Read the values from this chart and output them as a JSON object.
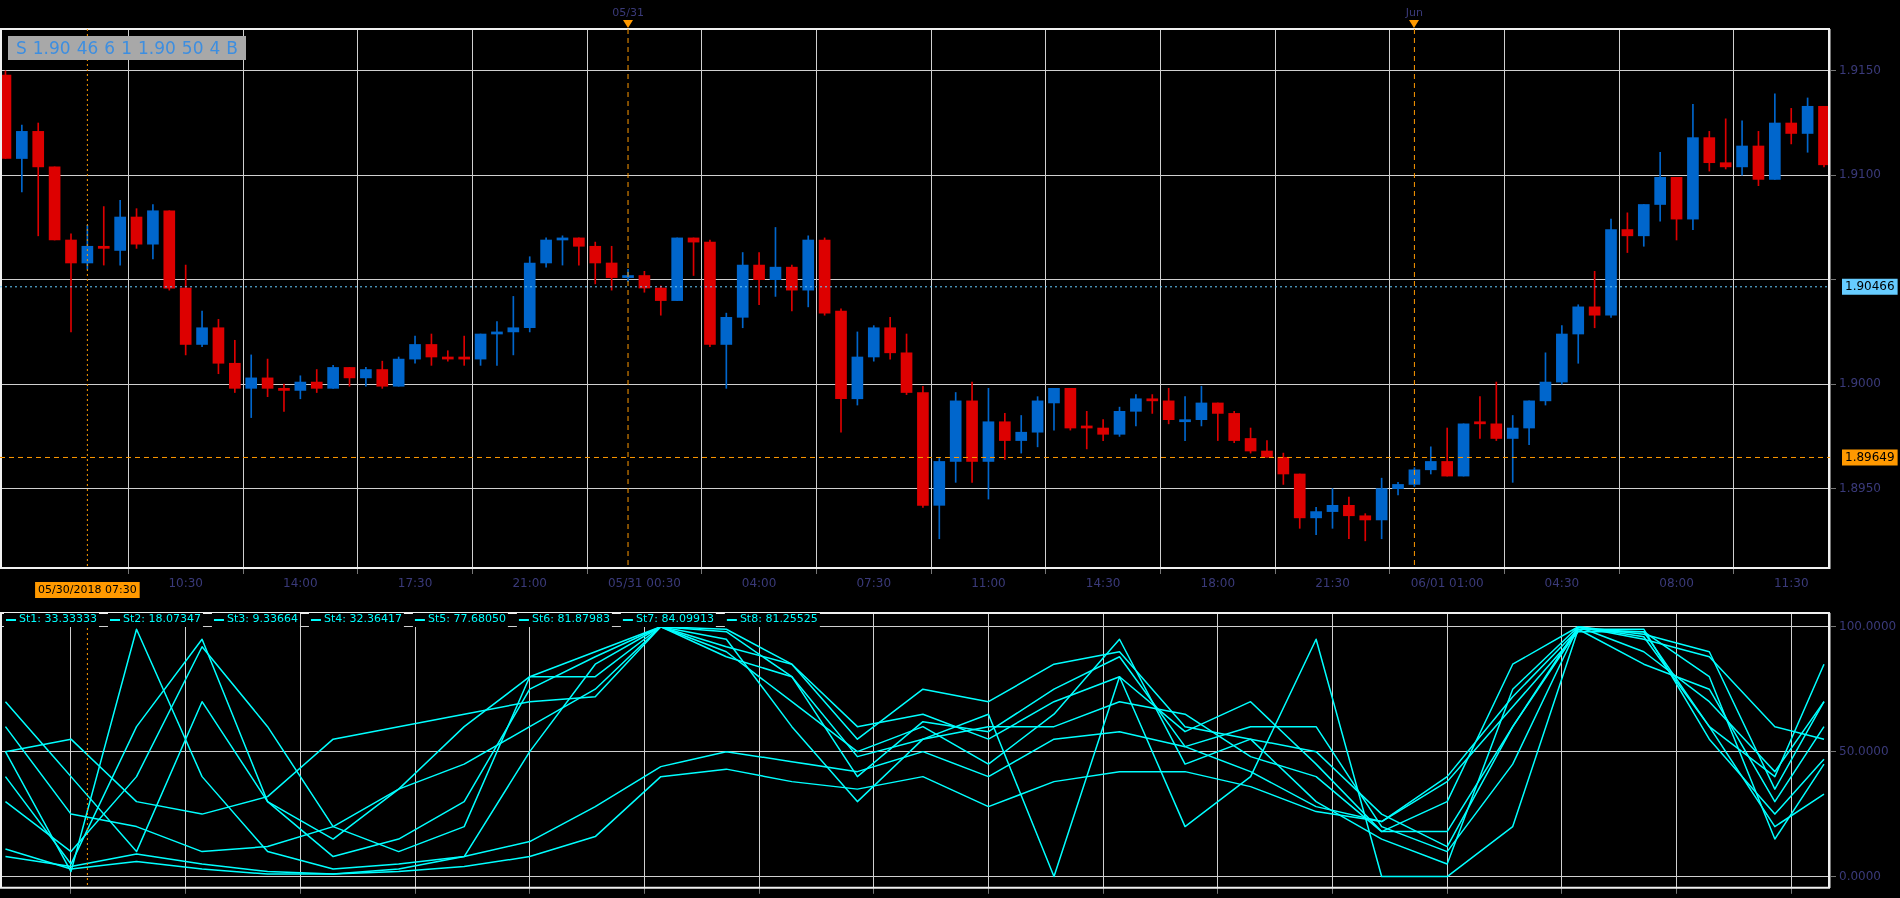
{
  "chart_data": [
    {
      "type": "candlestick",
      "annotations": [
        "S",
        "1.90",
        "46",
        "6",
        "1",
        "1.90",
        "50",
        "4",
        "B"
      ],
      "x": [
        "2018-05-30T05:00",
        "2018-05-30T05:30",
        "2018-05-30T06:00",
        "2018-05-30T06:30",
        "2018-05-30T07:00",
        "2018-05-30T07:30",
        "2018-05-30T08:00",
        "2018-05-30T08:30",
        "2018-05-30T09:00",
        "2018-05-30T09:30",
        "2018-05-30T10:00",
        "2018-05-30T10:30",
        "2018-05-30T11:00",
        "2018-05-30T11:30",
        "2018-05-30T12:00",
        "2018-05-30T12:30",
        "2018-05-30T13:00",
        "2018-05-30T13:30",
        "2018-05-30T14:00",
        "2018-05-30T14:30",
        "2018-05-30T15:00",
        "2018-05-30T15:30",
        "2018-05-30T16:00",
        "2018-05-30T16:30",
        "2018-05-30T17:00",
        "2018-05-30T17:30",
        "2018-05-30T18:00",
        "2018-05-30T18:30",
        "2018-05-30T19:00",
        "2018-05-30T19:30",
        "2018-05-30T20:00",
        "2018-05-30T20:30",
        "2018-05-30T21:00",
        "2018-05-30T21:30",
        "2018-05-30T22:00",
        "2018-05-30T22:30",
        "2018-05-30T23:00",
        "2018-05-30T23:30",
        "2018-05-31T00:00",
        "2018-05-31T00:30",
        "2018-05-31T01:00",
        "2018-05-31T01:30",
        "2018-05-31T02:00",
        "2018-05-31T02:30",
        "2018-05-31T03:00",
        "2018-05-31T03:30",
        "2018-05-31T04:00",
        "2018-05-31T04:30",
        "2018-05-31T05:00",
        "2018-05-31T05:30",
        "2018-05-31T06:00",
        "2018-05-31T06:30",
        "2018-05-31T07:00",
        "2018-05-31T07:30",
        "2018-05-31T08:00",
        "2018-05-31T08:30",
        "2018-05-31T09:00",
        "2018-05-31T09:30",
        "2018-05-31T10:00",
        "2018-05-31T10:30",
        "2018-05-31T11:00",
        "2018-05-31T11:30",
        "2018-05-31T12:00",
        "2018-05-31T12:30",
        "2018-05-31T13:00",
        "2018-05-31T13:30",
        "2018-05-31T14:00",
        "2018-05-31T14:30",
        "2018-05-31T15:00",
        "2018-05-31T15:30",
        "2018-05-31T16:00",
        "2018-05-31T16:30",
        "2018-05-31T17:00",
        "2018-05-31T17:30",
        "2018-05-31T18:00",
        "2018-05-31T18:30",
        "2018-05-31T19:00",
        "2018-05-31T19:30",
        "2018-05-31T20:00",
        "2018-05-31T20:30",
        "2018-05-31T21:00",
        "2018-05-31T21:30",
        "2018-05-31T22:00",
        "2018-05-31T22:30",
        "2018-05-31T23:00",
        "2018-05-31T23:30",
        "2018-06-01T00:00",
        "2018-06-01T00:30",
        "2018-06-01T01:00",
        "2018-06-01T01:30",
        "2018-06-01T02:00",
        "2018-06-01T02:30",
        "2018-06-01T03:00",
        "2018-06-01T03:30",
        "2018-06-01T04:00",
        "2018-06-01T04:30",
        "2018-06-01T05:00",
        "2018-06-01T05:30",
        "2018-06-01T06:00",
        "2018-06-01T06:30",
        "2018-06-01T07:00",
        "2018-06-01T07:30",
        "2018-06-01T08:00",
        "2018-06-01T08:30",
        "2018-06-01T09:00",
        "2018-06-01T09:30",
        "2018-06-01T10:00",
        "2018-06-01T10:30",
        "2018-06-01T11:00",
        "2018-06-01T11:30",
        "2018-06-01T12:00",
        "2018-06-01T12:30"
      ],
      "ohlc": [
        [
          1.9148,
          1.915,
          1.9108,
          1.9108
        ],
        [
          1.9108,
          1.9124,
          1.9092,
          1.9121
        ],
        [
          1.9121,
          1.9125,
          1.9071,
          1.9104
        ],
        [
          1.9104,
          1.9104,
          1.9069,
          1.9069
        ],
        [
          1.9069,
          1.9072,
          1.9025,
          1.9058
        ],
        [
          1.9058,
          1.9076,
          1.9055,
          1.9066
        ],
        [
          1.9066,
          1.9085,
          1.9057,
          1.9065
        ],
        [
          1.9064,
          1.9088,
          1.9057,
          1.908
        ],
        [
          1.908,
          1.9084,
          1.9065,
          1.9067
        ],
        [
          1.9067,
          1.9086,
          1.906,
          1.9083
        ],
        [
          1.9083,
          1.9083,
          1.9045,
          1.9046
        ],
        [
          1.9046,
          1.9057,
          1.9014,
          1.9019
        ],
        [
          1.9019,
          1.9035,
          1.9018,
          1.9027
        ],
        [
          1.9027,
          1.9031,
          1.9005,
          1.901
        ],
        [
          1.901,
          1.9021,
          1.8996,
          1.8998
        ],
        [
          1.8998,
          1.9014,
          1.8984,
          1.9003
        ],
        [
          1.9003,
          1.9012,
          1.8994,
          1.8998
        ],
        [
          1.8998,
          1.9,
          1.8987,
          1.8997
        ],
        [
          1.8997,
          1.9004,
          1.8993,
          1.9001
        ],
        [
          1.9001,
          1.9007,
          1.8996,
          1.8998
        ],
        [
          1.8998,
          1.9009,
          1.8998,
          1.9008
        ],
        [
          1.9008,
          1.9008,
          1.8999,
          1.9003
        ],
        [
          1.9003,
          1.9008,
          1.8999,
          1.9007
        ],
        [
          1.9007,
          1.9011,
          1.8998,
          1.8999
        ],
        [
          1.8999,
          1.9013,
          1.8999,
          1.9012
        ],
        [
          1.9012,
          1.9023,
          1.901,
          1.9019
        ],
        [
          1.9019,
          1.9024,
          1.9009,
          1.9013
        ],
        [
          1.9013,
          1.9016,
          1.9011,
          1.9012
        ],
        [
          1.9013,
          1.9023,
          1.9009,
          1.9012
        ],
        [
          1.9012,
          1.9024,
          1.9009,
          1.9024
        ],
        [
          1.9024,
          1.903,
          1.9009,
          1.9025
        ],
        [
          1.9025,
          1.9042,
          1.9014,
          1.9027
        ],
        [
          1.9027,
          1.9061,
          1.9025,
          1.9058
        ],
        [
          1.9058,
          1.907,
          1.9056,
          1.9069
        ],
        [
          1.9069,
          1.9071,
          1.9057,
          1.907
        ],
        [
          1.907,
          1.907,
          1.9057,
          1.9066
        ],
        [
          1.9066,
          1.9068,
          1.9048,
          1.9058
        ],
        [
          1.9058,
          1.9066,
          1.9045,
          1.9051
        ],
        [
          1.9051,
          1.9055,
          1.9049,
          1.9052
        ],
        [
          1.9052,
          1.9054,
          1.9044,
          1.9046
        ],
        [
          1.9046,
          1.9047,
          1.9033,
          1.904
        ],
        [
          1.904,
          1.907,
          1.904,
          1.907
        ],
        [
          1.907,
          1.907,
          1.9052,
          1.9068
        ],
        [
          1.9068,
          1.9069,
          1.9018,
          1.9019
        ],
        [
          1.9019,
          1.9034,
          1.8998,
          1.9032
        ],
        [
          1.9032,
          1.9063,
          1.9027,
          1.9057
        ],
        [
          1.9057,
          1.9063,
          1.9038,
          1.905
        ],
        [
          1.905,
          1.9075,
          1.9042,
          1.9056
        ],
        [
          1.9056,
          1.9057,
          1.9035,
          1.9045
        ],
        [
          1.9045,
          1.9071,
          1.9037,
          1.9069
        ],
        [
          1.9069,
          1.907,
          1.9033,
          1.9034
        ],
        [
          1.9035,
          1.9036,
          1.8977,
          1.8993
        ],
        [
          1.8993,
          1.9025,
          1.899,
          1.9013
        ],
        [
          1.9013,
          1.9028,
          1.9011,
          1.9027
        ],
        [
          1.9027,
          1.9032,
          1.9012,
          1.9015
        ],
        [
          1.9015,
          1.9024,
          1.8995,
          1.8996
        ],
        [
          1.8996,
          1.8999,
          1.8941,
          1.8942
        ],
        [
          1.8942,
          1.8965,
          1.8926,
          1.8963
        ],
        [
          1.8963,
          1.8996,
          1.8953,
          1.8992
        ],
        [
          1.8992,
          1.9001,
          1.8953,
          1.8963
        ],
        [
          1.8963,
          1.8998,
          1.8945,
          1.8982
        ],
        [
          1.8982,
          1.8986,
          1.8964,
          1.8973
        ],
        [
          1.8973,
          1.8985,
          1.8967,
          1.8977
        ],
        [
          1.8977,
          1.8994,
          1.897,
          1.8992
        ],
        [
          1.8991,
          1.8998,
          1.8978,
          1.8998
        ],
        [
          1.8998,
          1.8998,
          1.8978,
          1.8979
        ],
        [
          1.898,
          1.8987,
          1.8969,
          1.8979
        ],
        [
          1.8979,
          1.8983,
          1.8973,
          1.8976
        ],
        [
          1.8976,
          1.8989,
          1.8975,
          1.8987
        ],
        [
          1.8987,
          1.8995,
          1.898,
          1.8993
        ],
        [
          1.8993,
          1.8995,
          1.8986,
          1.8992
        ],
        [
          1.8992,
          1.8998,
          1.8981,
          1.8983
        ],
        [
          1.8982,
          1.8994,
          1.8973,
          1.8983
        ],
        [
          1.8983,
          1.8999,
          1.898,
          1.8991
        ],
        [
          1.8991,
          1.8991,
          1.8973,
          1.8986
        ],
        [
          1.8986,
          1.8987,
          1.8972,
          1.8973
        ],
        [
          1.8974,
          1.8979,
          1.8967,
          1.8968
        ],
        [
          1.8968,
          1.8973,
          1.8965,
          1.8965
        ],
        [
          1.8965,
          1.8967,
          1.8952,
          1.8957
        ],
        [
          1.8957,
          1.8957,
          1.8931,
          1.8936
        ],
        [
          1.8936,
          1.8941,
          1.8928,
          1.8939
        ],
        [
          1.8939,
          1.895,
          1.8931,
          1.8942
        ],
        [
          1.8942,
          1.8946,
          1.8926,
          1.8937
        ],
        [
          1.8937,
          1.8938,
          1.8925,
          1.8935
        ],
        [
          1.8935,
          1.8955,
          1.8926,
          1.895
        ],
        [
          1.895,
          1.8953,
          1.8947,
          1.8952
        ],
        [
          1.8952,
          1.896,
          1.8951,
          1.8959
        ],
        [
          1.8959,
          1.897,
          1.8957,
          1.8963
        ],
        [
          1.8963,
          1.8979,
          1.8956,
          1.8956
        ],
        [
          1.8956,
          1.8981,
          1.8956,
          1.8981
        ],
        [
          1.8982,
          1.8994,
          1.8974,
          1.8981
        ],
        [
          1.8981,
          1.9001,
          1.8973,
          1.8974
        ],
        [
          1.8974,
          1.8985,
          1.8953,
          1.8979
        ],
        [
          1.8979,
          1.8992,
          1.8971,
          1.8992
        ],
        [
          1.8992,
          1.9015,
          1.899,
          1.9001
        ],
        [
          1.9001,
          1.9028,
          1.9,
          1.9024
        ],
        [
          1.9024,
          1.9038,
          1.901,
          1.9037
        ],
        [
          1.9037,
          1.9054,
          1.9027,
          1.9033
        ],
        [
          1.9033,
          1.9079,
          1.9032,
          1.9074
        ],
        [
          1.9074,
          1.9082,
          1.9063,
          1.9071
        ],
        [
          1.9071,
          1.9086,
          1.9066,
          1.9086
        ],
        [
          1.9086,
          1.9111,
          1.9078,
          1.9099
        ],
        [
          1.9099,
          1.9099,
          1.9069,
          1.9079
        ],
        [
          1.9079,
          1.9134,
          1.9074,
          1.9118
        ],
        [
          1.9118,
          1.9121,
          1.9102,
          1.9106
        ],
        [
          1.9106,
          1.9127,
          1.9103,
          1.9104
        ],
        [
          1.9104,
          1.9126,
          1.91,
          1.9114
        ],
        [
          1.9114,
          1.9121,
          1.9095,
          1.9098
        ],
        [
          1.9098,
          1.9139,
          1.9098,
          1.9125
        ],
        [
          1.9125,
          1.9132,
          1.9115,
          1.912
        ],
        [
          1.912,
          1.9137,
          1.9111,
          1.9133
        ],
        [
          1.9133,
          1.9133,
          1.9104,
          1.9105
        ]
      ],
      "colors": [
        "#dd0000",
        "#0066cc",
        "#dd0000",
        "#dd0000",
        "#dd0000",
        "#0066cc",
        "#dd0000",
        "#0066cc",
        "#dd0000",
        "#0066cc",
        "#dd0000",
        "#dd0000",
        "#0066cc",
        "#dd0000",
        "#dd0000",
        "#0066cc",
        "#dd0000",
        "#dd0000",
        "#0066cc",
        "#dd0000",
        "#0066cc",
        "#dd0000",
        "#0066cc",
        "#dd0000",
        "#0066cc",
        "#0066cc",
        "#dd0000",
        "#dd0000",
        "#dd0000",
        "#0066cc",
        "#0066cc",
        "#0066cc",
        "#0066cc",
        "#0066cc",
        "#0066cc",
        "#dd0000",
        "#dd0000",
        "#dd0000",
        "#0066cc",
        "#dd0000",
        "#dd0000",
        "#0066cc",
        "#dd0000",
        "#dd0000",
        "#0066cc",
        "#0066cc",
        "#dd0000",
        "#0066cc",
        "#dd0000",
        "#0066cc",
        "#dd0000",
        "#dd0000",
        "#0066cc",
        "#0066cc",
        "#dd0000",
        "#dd0000",
        "#dd0000",
        "#0066cc",
        "#0066cc",
        "#dd0000",
        "#0066cc",
        "#dd0000",
        "#0066cc",
        "#0066cc",
        "#0066cc",
        "#dd0000",
        "#dd0000",
        "#dd0000",
        "#0066cc",
        "#0066cc",
        "#dd0000",
        "#dd0000",
        "#0066cc",
        "#0066cc",
        "#dd0000",
        "#dd0000",
        "#dd0000",
        "#dd0000",
        "#dd0000",
        "#dd0000",
        "#0066cc",
        "#0066cc",
        "#dd0000",
        "#dd0000",
        "#0066cc",
        "#0066cc",
        "#0066cc",
        "#0066cc",
        "#dd0000",
        "#0066cc",
        "#dd0000",
        "#dd0000",
        "#0066cc",
        "#0066cc",
        "#0066cc",
        "#0066cc",
        "#0066cc",
        "#dd0000",
        "#0066cc",
        "#dd0000",
        "#0066cc",
        "#0066cc",
        "#dd0000",
        "#0066cc",
        "#dd0000",
        "#dd0000",
        "#0066cc",
        "#dd0000",
        "#0066cc",
        "#dd0000",
        "#0066cc",
        "#dd0000"
      ],
      "xlim": [
        "2018-05-30T04:50",
        "2018-06-01T12:41"
      ],
      "xticks": [
        {
          "value": "2018-05-30T10:30",
          "label": "10:30"
        },
        {
          "value": "2018-05-30T14:00",
          "label": "14:00"
        },
        {
          "value": "2018-05-30T17:30",
          "label": "17:30"
        },
        {
          "value": "2018-05-30T21:00",
          "label": "21:00"
        },
        {
          "value": "2018-05-31T00:30",
          "label": "05/31 00:30"
        },
        {
          "value": "2018-05-31T04:00",
          "label": "04:00"
        },
        {
          "value": "2018-05-31T07:30",
          "label": "07:30"
        },
        {
          "value": "2018-05-31T11:00",
          "label": "11:00"
        },
        {
          "value": "2018-05-31T14:30",
          "label": "14:30"
        },
        {
          "value": "2018-05-31T18:00",
          "label": "18:00"
        },
        {
          "value": "2018-05-31T21:30",
          "label": "21:30"
        },
        {
          "value": "2018-06-01T01:00",
          "label": "06/01 01:00"
        },
        {
          "value": "2018-06-01T04:30",
          "label": "04:30"
        },
        {
          "value": "2018-06-01T08:00",
          "label": "08:00"
        },
        {
          "value": "2018-06-01T11:30",
          "label": "11:30"
        }
      ],
      "ylim": [
        1.8912,
        1.917
      ],
      "yticks": [
        {
          "value": 1.895,
          "label": "1.8950"
        },
        {
          "value": 1.9,
          "label": "1.9000"
        },
        {
          "value": 1.905,
          "label": null
        },
        {
          "value": 1.91,
          "label": "1.9100"
        },
        {
          "value": 1.915,
          "label": "1.9150"
        }
      ],
      "grid": true,
      "ref_lines": [
        {
          "axis": "y",
          "value": 1.89649,
          "label": "1.89649",
          "color": "#ff9900",
          "line_style": "dashed"
        },
        {
          "axis": "y",
          "value": 1.90466,
          "label": "1.90466",
          "color": "#66ccff",
          "line_style": "dotted"
        },
        {
          "axis": "x",
          "value": "2018-05-30T07:30",
          "label": "05/30/2018 07:30",
          "color": "#ff9900",
          "line_style": "dotted"
        },
        {
          "axis": "x",
          "value": "2018-05-31T00:00",
          "label": "05/31",
          "color": "#ff9900",
          "line_style": "dashed"
        },
        {
          "axis": "x",
          "value": "2018-06-01T00:00",
          "label": "Jun",
          "color": "#ff9900",
          "line_style": "dashed"
        }
      ]
    },
    {
      "type": "line",
      "x": [
        "2018-05-30T05:00",
        "2018-05-30T07:00",
        "2018-05-30T09:00",
        "2018-05-30T11:00",
        "2018-05-30T13:00",
        "2018-05-30T15:00",
        "2018-05-30T17:00",
        "2018-05-30T19:00",
        "2018-05-30T21:00",
        "2018-05-30T23:00",
        "2018-05-31T01:00",
        "2018-05-31T03:00",
        "2018-05-31T05:00",
        "2018-05-31T07:00",
        "2018-05-31T09:00",
        "2018-05-31T11:00",
        "2018-05-31T13:00",
        "2018-05-31T15:00",
        "2018-05-31T17:00",
        "2018-05-31T19:00",
        "2018-05-31T21:00",
        "2018-05-31T23:00",
        "2018-06-01T01:00",
        "2018-06-01T03:00",
        "2018-06-01T05:00",
        "2018-06-01T07:00",
        "2018-06-01T09:00",
        "2018-06-01T11:00",
        "2018-06-01T12:30"
      ],
      "series": [
        {
          "name": "St1: 33.33333",
          "color": "#00ffff",
          "values": [
            50,
            2,
            99,
            40,
            10,
            3,
            5,
            8,
            50,
            85,
            100,
            95,
            60,
            30,
            55,
            65,
            0,
            80,
            20,
            40,
            95,
            0,
            0,
            20,
            99,
            98,
            80,
            15,
            45
          ]
        },
        {
          "name": "St2: 18.07347",
          "color": "#00ffff",
          "values": [
            40,
            5,
            60,
            95,
            30,
            8,
            15,
            30,
            75,
            88,
            100,
            98,
            80,
            40,
            62,
            58,
            75,
            88,
            52,
            60,
            60,
            20,
            10,
            45,
            100,
            97,
            90,
            35,
            70
          ]
        },
        {
          "name": "St3: 9.33664",
          "color": "#00ffff",
          "values": [
            30,
            10,
            40,
            92,
            60,
            20,
            10,
            20,
            80,
            90,
            100,
            99,
            85,
            55,
            75,
            70,
            85,
            90,
            60,
            55,
            50,
            25,
            12,
            60,
            100,
            96,
            60,
            40,
            85
          ]
        },
        {
          "name": "St4: 32.36417",
          "color": "#00ffff",
          "values": [
            70,
            40,
            10,
            70,
            30,
            15,
            35,
            60,
            80,
            80,
            100,
            90,
            70,
            50,
            60,
            45,
            65,
            95,
            45,
            55,
            30,
            15,
            5,
            75,
            100,
            95,
            88,
            60,
            55
          ]
        },
        {
          "name": "St5: 77.68050",
          "color": "#00ffff",
          "values": [
            50,
            55,
            30,
            25,
            32,
            55,
            60,
            65,
            70,
            72,
            100,
            88,
            80,
            48,
            55,
            60,
            60,
            70,
            65,
            48,
            40,
            18,
            30,
            85,
            100,
            90,
            70,
            42,
            70
          ]
        },
        {
          "name": "St6: 81.87983",
          "color": "#00ffff",
          "values": [
            60,
            25,
            20,
            10,
            12,
            20,
            35,
            45,
            60,
            75,
            100,
            92,
            85,
            60,
            65,
            55,
            70,
            80,
            58,
            70,
            45,
            18,
            18,
            60,
            99,
            85,
            75,
            30,
            60
          ]
        },
        {
          "name": "St7: 84.09913",
          "color": "#00ffff",
          "values": [
            11,
            3,
            6,
            3,
            1,
            1,
            2,
            4,
            8,
            16,
            40,
            43,
            38,
            35,
            40,
            28,
            38,
            42,
            42,
            36,
            26,
            22,
            38,
            68,
            98,
            98,
            60,
            20,
            33
          ]
        },
        {
          "name": "St8: 81.25525",
          "color": "#00ffff",
          "values": [
            8,
            4,
            9,
            5,
            2,
            1,
            3,
            8,
            14,
            28,
            44,
            50,
            46,
            42,
            50,
            40,
            55,
            58,
            52,
            42,
            28,
            22,
            40,
            72,
            99,
            99,
            55,
            25,
            47
          ]
        }
      ],
      "xlim": [
        "2018-05-30T04:50",
        "2018-06-01T12:41"
      ],
      "xticks": [
        {
          "value": "2018-05-30T07:00",
          "label": null
        },
        {
          "value": "2018-05-30T10:30",
          "label": null
        },
        {
          "value": "2018-05-30T14:00",
          "label": null
        },
        {
          "value": "2018-05-30T17:30",
          "label": null
        },
        {
          "value": "2018-05-30T21:00",
          "label": null
        },
        {
          "value": "2018-05-31T00:30",
          "label": null
        },
        {
          "value": "2018-05-31T04:00",
          "label": null
        },
        {
          "value": "2018-05-31T07:30",
          "label": null
        },
        {
          "value": "2018-05-31T11:00",
          "label": null
        },
        {
          "value": "2018-05-31T14:30",
          "label": null
        },
        {
          "value": "2018-05-31T18:00",
          "label": null
        },
        {
          "value": "2018-05-31T21:30",
          "label": null
        },
        {
          "value": "2018-06-01T01:00",
          "label": null
        },
        {
          "value": "2018-06-01T04:30",
          "label": null
        },
        {
          "value": "2018-06-01T08:00",
          "label": null
        },
        {
          "value": "2018-06-01T11:30",
          "label": null
        }
      ],
      "ylim": [
        -4.5,
        105.5
      ],
      "yticks": [
        {
          "value": 0,
          "label": "0.0000"
        },
        {
          "value": 50,
          "label": "50.0000"
        },
        {
          "value": 100,
          "label": "100.0000"
        }
      ],
      "grid": true,
      "legend": "top left",
      "tick_labels": "y",
      "ref_lines": [
        {
          "axis": "x",
          "value": "2018-05-30T07:30",
          "color": "#ff9900",
          "line_style": "dotted"
        }
      ]
    }
  ]
}
